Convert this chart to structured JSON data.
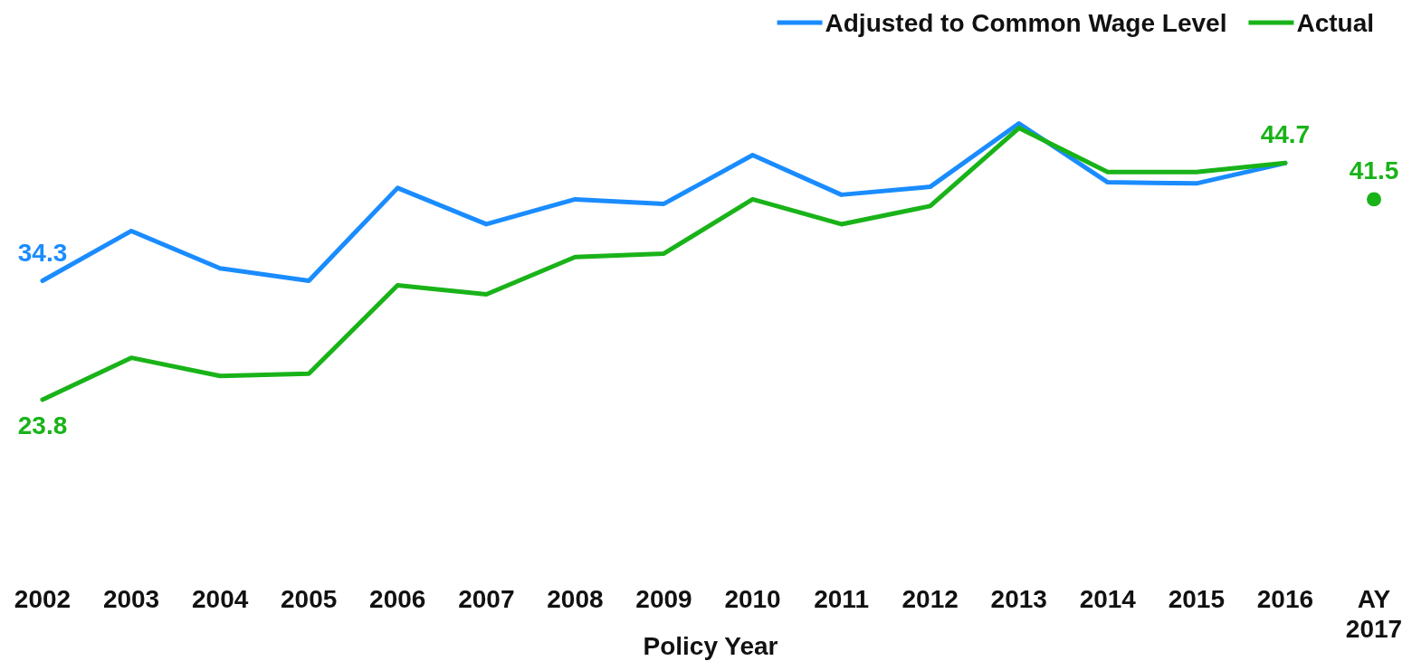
{
  "chart_data": {
    "type": "line",
    "categories": [
      "2002",
      "2003",
      "2004",
      "2005",
      "2006",
      "2007",
      "2008",
      "2009",
      "2010",
      "2011",
      "2012",
      "2013",
      "2014",
      "2015",
      "2016",
      "AY 2017"
    ],
    "xlabel": "Policy Year",
    "tick_labels": "x",
    "legend": "top right",
    "series": [
      {
        "name": "Adjusted to Common Wage Level",
        "color": "#1a8cff",
        "values": [
          34.3,
          38.7,
          35.4,
          34.3,
          42.5,
          39.3,
          41.5,
          41.1,
          45.4,
          41.9,
          42.6,
          48.2,
          43.0,
          42.9,
          44.7,
          null
        ],
        "value_labels": [
          "34.3",
          null,
          null,
          null,
          null,
          null,
          null,
          null,
          null,
          null,
          null,
          null,
          null,
          null,
          null,
          null
        ]
      },
      {
        "name": "Actual",
        "color": "#19b319",
        "values": [
          23.8,
          27.5,
          25.9,
          26.1,
          33.9,
          33.1,
          36.4,
          36.7,
          41.5,
          39.3,
          40.9,
          47.8,
          43.9,
          43.9,
          44.7,
          null
        ],
        "value_labels": [
          "23.8",
          null,
          null,
          null,
          null,
          null,
          null,
          null,
          null,
          null,
          null,
          null,
          null,
          null,
          "44.7",
          null
        ]
      },
      {
        "type": "scatter",
        "marker": "circle",
        "color": "#19b319",
        "values": [
          null,
          null,
          null,
          null,
          null,
          null,
          null,
          null,
          null,
          null,
          null,
          null,
          null,
          null,
          null,
          41.5
        ],
        "value_labels": [
          null,
          null,
          null,
          null,
          null,
          null,
          null,
          null,
          null,
          null,
          null,
          null,
          null,
          null,
          null,
          "41.5"
        ]
      }
    ]
  }
}
